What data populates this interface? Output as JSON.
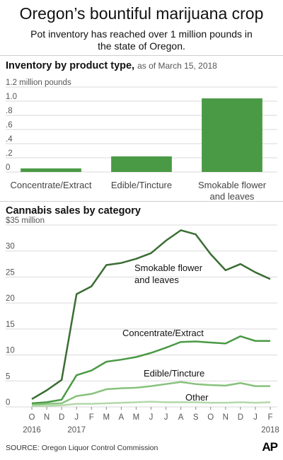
{
  "header": {
    "title": "Oregon’s bountiful marijuana crop",
    "subtitle": "Pot inventory has reached over 1 million pounds in the state of Oregon."
  },
  "footer": {
    "source": "SOURCE: Oregon Liquor Control Commission",
    "logo_text": "AP"
  },
  "colors": {
    "bar": "#4a9a45",
    "gridline": "#d9d9d9",
    "text": "#111111",
    "axis_text": "#555555"
  },
  "chart_data": [
    {
      "type": "bar",
      "title": "Inventory by product type,",
      "subtitle": "as of March 15, 2018",
      "unit_label": "1.2 million pounds",
      "categories": [
        "Concentrate/Extract",
        "Edible/Tincture",
        "Smokable flower\nand leaves"
      ],
      "values": [
        0.05,
        0.22,
        1.04
      ],
      "ylim": [
        0,
        1.2
      ],
      "yticks": [
        0,
        0.2,
        0.4,
        0.6,
        0.8,
        1.0,
        1.2
      ],
      "ytick_labels": [
        "0",
        ".2",
        ".4",
        ".6",
        ".8",
        "1.0",
        "1.2 million pounds"
      ],
      "grid": true
    },
    {
      "type": "line",
      "title": "Cannabis sales by category",
      "unit_label": "$35 million",
      "x": [
        "2016-10",
        "2016-11",
        "2016-12",
        "2017-01",
        "2017-02",
        "2017-03",
        "2017-04",
        "2017-05",
        "2017-06",
        "2017-07",
        "2017-08",
        "2017-09",
        "2017-10",
        "2017-11",
        "2017-12",
        "2018-01",
        "2018-02"
      ],
      "xtick_labels": [
        "O",
        "N",
        "D",
        "J",
        "F",
        "M",
        "A",
        "M",
        "J",
        "J",
        "A",
        "S",
        "O",
        "N",
        "D",
        "J",
        "F"
      ],
      "year_labels": [
        {
          "label": "2016",
          "at": "2016-10"
        },
        {
          "label": "2017",
          "at": "2017-01"
        },
        {
          "label": "2018",
          "at": "2018-02"
        }
      ],
      "ylim": [
        0,
        35
      ],
      "yticks": [
        0,
        5,
        10,
        15,
        20,
        25,
        30,
        35
      ],
      "ytick_labels": [
        "0",
        "5",
        "10",
        "15",
        "20",
        "25",
        "30",
        "$35 million"
      ],
      "grid": true,
      "series": [
        {
          "name": "Smokable flower\nand leaves",
          "color": "#3a6d33",
          "values": [
            1.5,
            3.2,
            5.2,
            21.7,
            23.2,
            27.3,
            27.7,
            28.5,
            29.6,
            32.0,
            34.0,
            33.2,
            29.4,
            26.3,
            27.5,
            25.9,
            24.6
          ]
        },
        {
          "name": "Concentrate/Extract",
          "color": "#4a9a45",
          "values": [
            0.7,
            0.9,
            1.4,
            6.1,
            7.0,
            8.7,
            9.1,
            9.6,
            10.4,
            11.4,
            12.5,
            12.6,
            12.4,
            12.2,
            13.6,
            12.7,
            12.7
          ]
        },
        {
          "name": "Edible/Tincture",
          "color": "#87c27c",
          "values": [
            0.4,
            0.6,
            0.7,
            2.1,
            2.5,
            3.4,
            3.6,
            3.7,
            4.0,
            4.4,
            4.8,
            4.4,
            4.2,
            4.1,
            4.6,
            4.0,
            4.0
          ]
        },
        {
          "name": "Other",
          "color": "#b3d8aa",
          "values": [
            0.2,
            0.2,
            0.3,
            0.6,
            0.6,
            0.7,
            0.8,
            0.9,
            1.0,
            0.9,
            0.9,
            0.9,
            0.8,
            0.8,
            0.9,
            0.8,
            0.9
          ]
        }
      ]
    }
  ]
}
